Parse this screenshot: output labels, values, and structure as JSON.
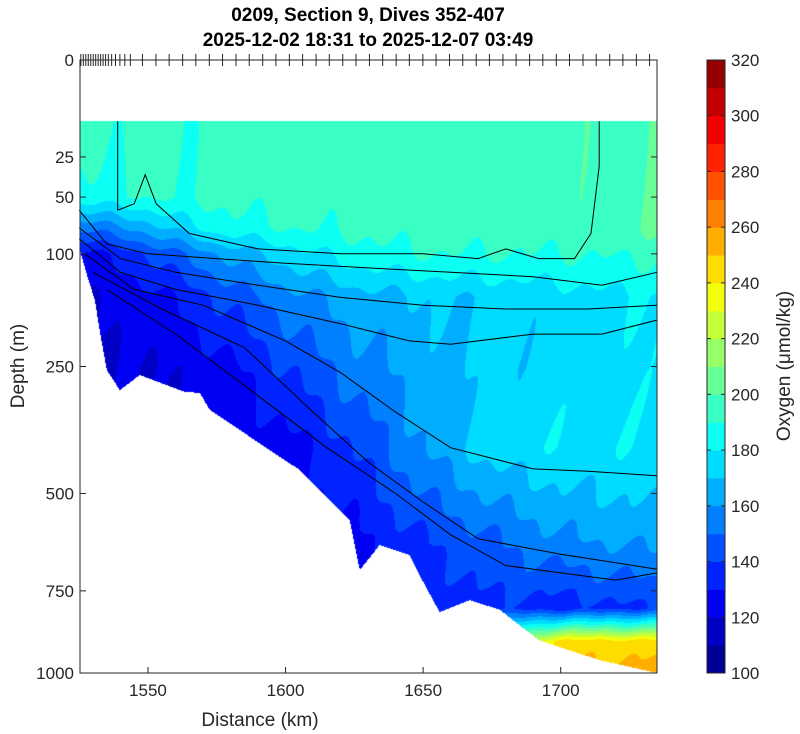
{
  "chart_data": {
    "type": "heatmap",
    "title": "0209, Section 9, Dives 352-407",
    "subtitle": "2025-12-02 18:31 to 2025-12-07 03:49",
    "xlabel": "Distance (km)",
    "ylabel": "Depth (m)",
    "xlim": [
      1525.3,
      1735
    ],
    "ylim": [
      0,
      1000
    ],
    "yscale": "sqrt",
    "xticks": [
      "1550",
      "1600",
      "1650",
      "1700"
    ],
    "xtick_values": [
      1550,
      1600,
      1650,
      1700
    ],
    "yticks": [
      "0",
      "25",
      "50",
      "100",
      "250",
      "500",
      "750",
      "1000"
    ],
    "ytick_values": [
      0,
      25,
      50,
      100,
      250,
      500,
      750,
      1000
    ],
    "colorbar": {
      "label": "Oxygen (μmol/kg)",
      "range": [
        100,
        320
      ],
      "ticks": [
        "100",
        "120",
        "140",
        "160",
        "180",
        "200",
        "220",
        "240",
        "260",
        "280",
        "300",
        "320"
      ],
      "tick_values": [
        100,
        120,
        140,
        160,
        180,
        200,
        220,
        240,
        260,
        280,
        300,
        320
      ],
      "colormap": "jet",
      "levels": 22
    },
    "dive_distances": [
      1525.6,
      1526.5,
      1527.4,
      1528.3,
      1529.2,
      1530.1,
      1531.0,
      1531.9,
      1532.8,
      1533.7,
      1534.6,
      1535.6,
      1536.8,
      1538.2,
      1539.8,
      1541.6,
      1543.6,
      1548.0,
      1552.9,
      1557.7,
      1562.6,
      1567.4,
      1572.3,
      1577.1,
      1582.0,
      1586.8,
      1591.7,
      1596.5,
      1601.4,
      1606.2,
      1611.1,
      1615.9,
      1620.8,
      1625.6,
      1630.5,
      1635.3,
      1640.2,
      1645.0,
      1649.9,
      1654.7,
      1659.6,
      1664.4,
      1669.3,
      1674.1,
      1679.0,
      1683.8,
      1688.7,
      1693.5,
      1698.4,
      1703.2,
      1708.1,
      1712.9,
      1717.8,
      1722.6,
      1727.5,
      1732.3
    ],
    "grid": {
      "distance": [
        1525,
        1550,
        1575,
        1600,
        1625,
        1650,
        1675,
        1700,
        1735
      ],
      "depth": [
        10,
        50,
        75,
        100,
        150,
        250,
        400,
        600,
        800,
        900,
        1000
      ],
      "oxygen": [
        [
          195,
          192,
          192,
          195,
          195,
          195,
          195,
          195,
          200
        ],
        [
          185,
          190,
          192,
          195,
          195,
          195,
          195,
          195,
          200
        ],
        [
          150,
          165,
          185,
          190,
          192,
          195,
          195,
          195,
          200
        ],
        [
          125,
          140,
          160,
          175,
          185,
          190,
          190,
          190,
          192
        ],
        [
          120,
          125,
          140,
          155,
          165,
          170,
          172,
          175,
          180
        ],
        [
          118,
          120,
          125,
          140,
          155,
          165,
          172,
          175,
          178
        ],
        [
          118,
          120,
          122,
          125,
          140,
          160,
          175,
          178,
          178
        ],
        [
          118,
          120,
          122,
          125,
          128,
          140,
          150,
          160,
          165
        ],
        [
          118,
          120,
          122,
          125,
          128,
          130,
          138,
          135,
          140
        ],
        [
          118,
          120,
          122,
          125,
          128,
          130,
          200,
          245,
          245
        ],
        [
          118,
          120,
          122,
          125,
          128,
          130,
          240,
          250,
          255
        ]
      ]
    },
    "data_top_depth": 10,
    "seafloor": [
      [
        1525.3,
        96
      ],
      [
        1530.7,
        153
      ],
      [
        1535.1,
        256
      ],
      [
        1539.8,
        290
      ],
      [
        1547,
        264
      ],
      [
        1563.4,
        293
      ],
      [
        1568.9,
        295
      ],
      [
        1572.5,
        326
      ],
      [
        1583.4,
        364
      ],
      [
        1605.2,
        447
      ],
      [
        1623.3,
        563
      ],
      [
        1627,
        692
      ],
      [
        1634.2,
        626
      ],
      [
        1645,
        652
      ],
      [
        1656,
        811
      ],
      [
        1667,
        776
      ],
      [
        1678,
        805
      ],
      [
        1692,
        895
      ],
      [
        1714,
        958
      ],
      [
        1735,
        1000
      ]
    ],
    "contours": [
      [
        [
          1539,
          10
        ],
        [
          1539,
          60
        ],
        [
          1545,
          55
        ],
        [
          1549,
          35
        ],
        [
          1553,
          55
        ],
        [
          1565,
          80
        ],
        [
          1590,
          95
        ],
        [
          1620,
          100
        ],
        [
          1650,
          100
        ],
        [
          1670,
          105
        ],
        [
          1680,
          95
        ],
        [
          1692,
          105
        ],
        [
          1705,
          105
        ],
        [
          1711,
          80
        ],
        [
          1714,
          30
        ],
        [
          1714,
          10
        ]
      ],
      [
        [
          1525,
          60
        ],
        [
          1535,
          90
        ],
        [
          1550,
          100
        ],
        [
          1575,
          105
        ],
        [
          1600,
          110
        ],
        [
          1630,
          115
        ],
        [
          1660,
          120
        ],
        [
          1690,
          125
        ],
        [
          1715,
          135
        ],
        [
          1735,
          120
        ]
      ],
      [
        [
          1525,
          75
        ],
        [
          1540,
          105
        ],
        [
          1560,
          120
        ],
        [
          1590,
          135
        ],
        [
          1620,
          150
        ],
        [
          1650,
          160
        ],
        [
          1680,
          165
        ],
        [
          1710,
          165
        ],
        [
          1735,
          160
        ]
      ],
      [
        [
          1525,
          85
        ],
        [
          1540,
          120
        ],
        [
          1560,
          140
        ],
        [
          1590,
          160
        ],
        [
          1620,
          185
        ],
        [
          1645,
          210
        ],
        [
          1660,
          215
        ],
        [
          1690,
          200
        ],
        [
          1715,
          200
        ],
        [
          1735,
          180
        ]
      ],
      [
        [
          1527,
          100
        ],
        [
          1545,
          140
        ],
        [
          1570,
          160
        ],
        [
          1600,
          210
        ],
        [
          1620,
          260
        ],
        [
          1640,
          330
        ],
        [
          1660,
          400
        ],
        [
          1690,
          445
        ],
        [
          1710,
          450
        ],
        [
          1735,
          460
        ]
      ],
      [
        [
          1530,
          120
        ],
        [
          1555,
          165
        ],
        [
          1585,
          220
        ],
        [
          1610,
          330
        ],
        [
          1630,
          430
        ],
        [
          1650,
          520
        ],
        [
          1670,
          610
        ],
        [
          1700,
          650
        ],
        [
          1735,
          690
        ]
      ],
      [
        [
          1535,
          140
        ],
        [
          1560,
          200
        ],
        [
          1590,
          300
        ],
        [
          1615,
          400
        ],
        [
          1640,
          500
        ],
        [
          1660,
          600
        ],
        [
          1680,
          680
        ],
        [
          1700,
          700
        ],
        [
          1720,
          720
        ],
        [
          1735,
          700
        ]
      ]
    ]
  }
}
